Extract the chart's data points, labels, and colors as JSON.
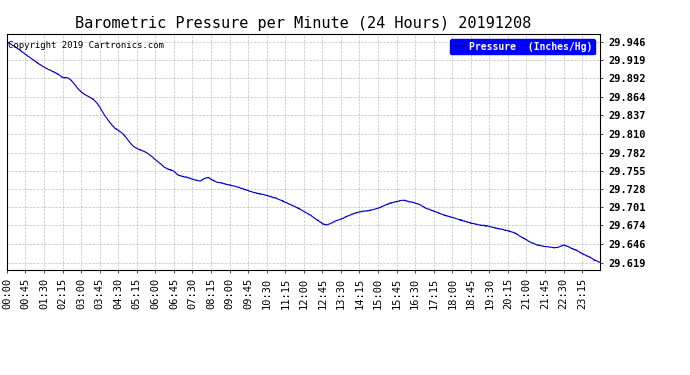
{
  "title": "Barometric Pressure per Minute (24 Hours) 20191208",
  "copyright_text": "Copyright 2019 Cartronics.com",
  "legend_label": "Pressure  (Inches/Hg)",
  "line_color": "#0000cc",
  "background_color": "#ffffff",
  "grid_color": "#b0b0b0",
  "yticks": [
    29.619,
    29.646,
    29.674,
    29.701,
    29.728,
    29.755,
    29.782,
    29.81,
    29.837,
    29.864,
    29.892,
    29.919,
    29.946
  ],
  "ymin": 29.608,
  "ymax": 29.958,
  "xtick_labels": [
    "00:00",
    "00:45",
    "01:30",
    "02:15",
    "03:00",
    "03:45",
    "04:30",
    "05:15",
    "06:00",
    "06:45",
    "07:30",
    "08:15",
    "09:00",
    "09:45",
    "10:30",
    "11:15",
    "12:00",
    "12:45",
    "13:30",
    "14:15",
    "15:00",
    "15:45",
    "16:30",
    "17:15",
    "18:00",
    "18:45",
    "19:30",
    "20:15",
    "21:00",
    "21:45",
    "22:30",
    "23:15"
  ],
  "font_family": "monospace",
  "title_fontsize": 11,
  "tick_fontsize": 7.5,
  "copyright_fontsize": 6.5
}
